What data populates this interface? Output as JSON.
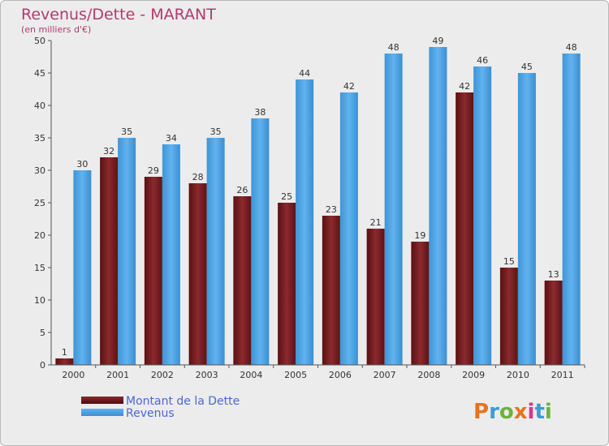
{
  "chart_data": {
    "type": "bar",
    "title": "Revenus/Dette - MARANT",
    "subtitle": "(en milliers d'€)",
    "categories": [
      "2000",
      "2001",
      "2002",
      "2003",
      "2004",
      "2005",
      "2006",
      "2007",
      "2008",
      "2009",
      "2010",
      "2011"
    ],
    "series": [
      {
        "name": "Montant de la Dette",
        "values": [
          1,
          32,
          29,
          28,
          26,
          25,
          23,
          21,
          19,
          42,
          15,
          13
        ],
        "color": "#7a1a1e"
      },
      {
        "name": "Revenus",
        "values": [
          30,
          35,
          34,
          35,
          38,
          44,
          42,
          48,
          49,
          46,
          45,
          48
        ],
        "color": "#4ea3e3"
      }
    ],
    "ylim": [
      0,
      50
    ],
    "yticks": [
      0,
      5,
      10,
      15,
      20,
      25,
      30,
      35,
      40,
      45,
      50
    ],
    "grid": false,
    "legend_position": "bottom-left"
  },
  "logo": {
    "text": "Proxiti",
    "colors": [
      "#e8731e",
      "#3d9bd6",
      "#6cb33f",
      "#e8731e",
      "#d13a8a",
      "#3d9bd6",
      "#6cb33f"
    ]
  }
}
